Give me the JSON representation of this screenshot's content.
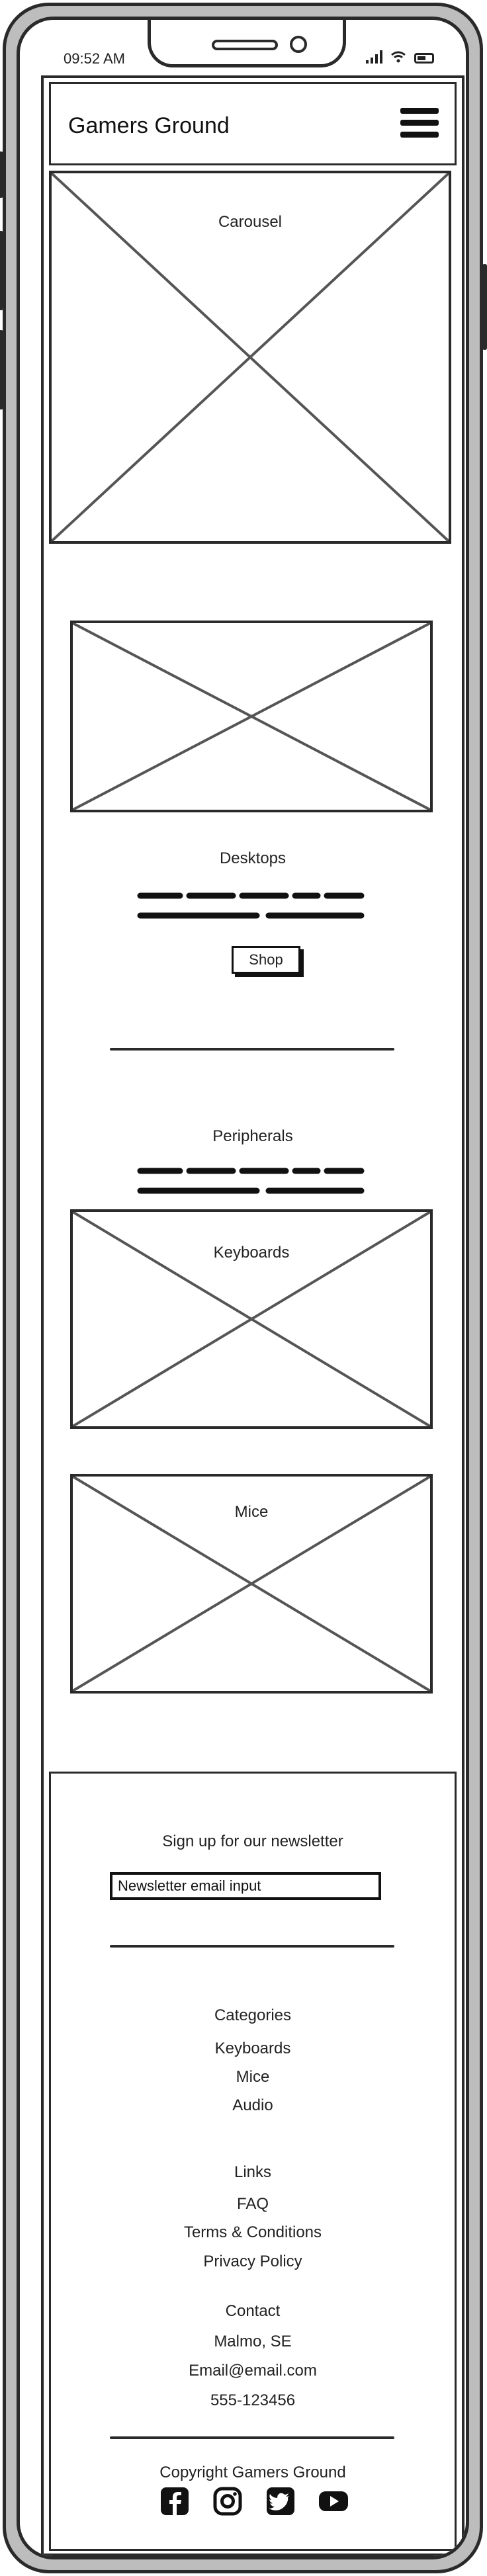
{
  "status_bar": {
    "time": "09:52 AM"
  },
  "header": {
    "brand": "Gamers Ground"
  },
  "carousel": {
    "label": "Carousel"
  },
  "desktops": {
    "title": "Desktops",
    "button": "Shop"
  },
  "peripherals": {
    "title": "Peripherals",
    "keyboards_label": "Keyboards",
    "mice_label": "Mice"
  },
  "newsletter": {
    "heading": "Sign up for our newsletter",
    "input_value": "Newsletter email input"
  },
  "categories": {
    "heading": "Categories",
    "items": [
      "Keyboards",
      "Mice",
      "Audio"
    ]
  },
  "links": {
    "heading": "Links",
    "items": [
      "FAQ",
      "Terms & Conditions",
      "Privacy Policy"
    ]
  },
  "contact": {
    "heading": "Contact",
    "items": [
      "Malmo, SE",
      "Email@email.com",
      "555-123456"
    ]
  },
  "copyright": "Copyright Gamers Ground",
  "social_icons": [
    "facebook-icon",
    "instagram-icon",
    "twitter-icon",
    "youtube-icon"
  ]
}
